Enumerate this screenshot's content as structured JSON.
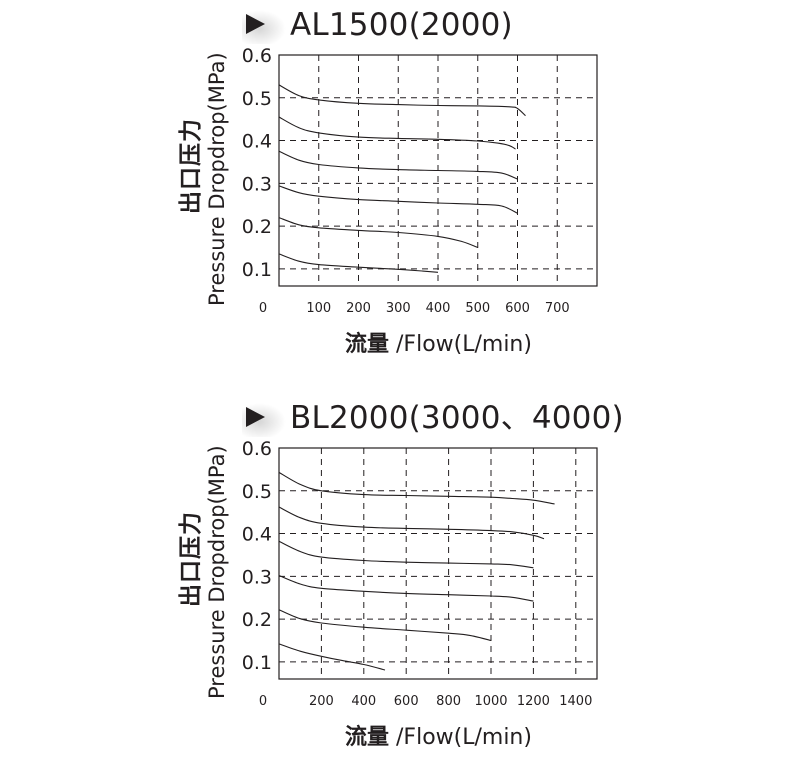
{
  "chart_data": [
    {
      "type": "line",
      "title": "AL1500(2000)",
      "ylabel_cn": "出口压力",
      "ylabel_en": "Pressure Dropdrop(MPa)",
      "xlabel_cn": "流量",
      "xlabel_en": " /Flow(L/min)",
      "xlim": [
        0,
        800
      ],
      "ylim": [
        0.06,
        0.6
      ],
      "grid": true,
      "grid_style": "dashed",
      "yticks": [
        0.1,
        0.2,
        0.3,
        0.4,
        0.5,
        0.6
      ],
      "ytick_labels": [
        "0.1",
        "0.2",
        "0.3",
        "0.4",
        "0.5",
        "0.6"
      ],
      "xticks": [
        0,
        100,
        200,
        300,
        400,
        500,
        600,
        700
      ],
      "xtick_labels": [
        "0",
        "100",
        "200",
        "300",
        "400",
        "500",
        "600",
        "700"
      ],
      "series": [
        {
          "points": [
            [
              0,
              0.53
            ],
            [
              50,
              0.505
            ],
            [
              100,
              0.495
            ],
            [
              200,
              0.487
            ],
            [
              300,
              0.484
            ],
            [
              400,
              0.482
            ],
            [
              500,
              0.481
            ],
            [
              580,
              0.479
            ],
            [
              600,
              0.475
            ],
            [
              620,
              0.458
            ]
          ]
        },
        {
          "points": [
            [
              0,
              0.455
            ],
            [
              50,
              0.43
            ],
            [
              100,
              0.418
            ],
            [
              200,
              0.408
            ],
            [
              300,
              0.405
            ],
            [
              400,
              0.403
            ],
            [
              500,
              0.399
            ],
            [
              550,
              0.394
            ],
            [
              580,
              0.388
            ],
            [
              595,
              0.38
            ]
          ]
        },
        {
          "points": [
            [
              0,
              0.375
            ],
            [
              50,
              0.354
            ],
            [
              100,
              0.344
            ],
            [
              200,
              0.336
            ],
            [
              300,
              0.332
            ],
            [
              400,
              0.33
            ],
            [
              500,
              0.328
            ],
            [
              560,
              0.324
            ],
            [
              600,
              0.31
            ]
          ]
        },
        {
          "points": [
            [
              0,
              0.294
            ],
            [
              50,
              0.278
            ],
            [
              100,
              0.27
            ],
            [
              200,
              0.262
            ],
            [
              300,
              0.258
            ],
            [
              400,
              0.254
            ],
            [
              500,
              0.251
            ],
            [
              560,
              0.247
            ],
            [
              600,
              0.23
            ]
          ]
        },
        {
          "points": [
            [
              0,
              0.22
            ],
            [
              50,
              0.203
            ],
            [
              100,
              0.196
            ],
            [
              200,
              0.19
            ],
            [
              300,
              0.185
            ],
            [
              400,
              0.176
            ],
            [
              460,
              0.164
            ],
            [
              500,
              0.15
            ]
          ]
        },
        {
          "points": [
            [
              0,
              0.135
            ],
            [
              50,
              0.118
            ],
            [
              100,
              0.11
            ],
            [
              200,
              0.104
            ],
            [
              300,
              0.099
            ],
            [
              360,
              0.095
            ],
            [
              400,
              0.092
            ]
          ]
        }
      ]
    },
    {
      "type": "line",
      "title": "BL2000(3000、4000)",
      "ylabel_cn": "出口压力",
      "ylabel_en": "Pressure Dropdrop(MPa)",
      "xlabel_cn": "流量",
      "xlabel_en": " /Flow(L/min)",
      "xlim": [
        0,
        1500
      ],
      "ylim": [
        0.06,
        0.6
      ],
      "grid": true,
      "grid_style": "dashed",
      "yticks": [
        0.1,
        0.2,
        0.3,
        0.4,
        0.5,
        0.6
      ],
      "ytick_labels": [
        "0.1",
        "0.2",
        "0.3",
        "0.4",
        "0.5",
        "0.6"
      ],
      "xticks": [
        0,
        200,
        400,
        600,
        800,
        1000,
        1200,
        1400
      ],
      "xtick_labels": [
        "0",
        "200",
        "400",
        "600",
        "800",
        "1000",
        "1200",
        "1400"
      ],
      "series": [
        {
          "points": [
            [
              0,
              0.543
            ],
            [
              100,
              0.515
            ],
            [
              200,
              0.5
            ],
            [
              400,
              0.491
            ],
            [
              600,
              0.489
            ],
            [
              800,
              0.487
            ],
            [
              1000,
              0.485
            ],
            [
              1100,
              0.482
            ],
            [
              1200,
              0.478
            ],
            [
              1300,
              0.469
            ]
          ]
        },
        {
          "points": [
            [
              0,
              0.462
            ],
            [
              100,
              0.437
            ],
            [
              200,
              0.424
            ],
            [
              400,
              0.415
            ],
            [
              600,
              0.412
            ],
            [
              800,
              0.41
            ],
            [
              1000,
              0.407
            ],
            [
              1100,
              0.404
            ],
            [
              1200,
              0.396
            ],
            [
              1250,
              0.388
            ]
          ]
        },
        {
          "points": [
            [
              0,
              0.382
            ],
            [
              100,
              0.358
            ],
            [
              200,
              0.345
            ],
            [
              400,
              0.337
            ],
            [
              600,
              0.333
            ],
            [
              800,
              0.331
            ],
            [
              1000,
              0.329
            ],
            [
              1100,
              0.327
            ],
            [
              1200,
              0.32
            ]
          ]
        },
        {
          "points": [
            [
              0,
              0.302
            ],
            [
              100,
              0.282
            ],
            [
              200,
              0.272
            ],
            [
              400,
              0.265
            ],
            [
              600,
              0.26
            ],
            [
              800,
              0.257
            ],
            [
              1000,
              0.254
            ],
            [
              1100,
              0.251
            ],
            [
              1200,
              0.242
            ]
          ]
        },
        {
          "points": [
            [
              0,
              0.222
            ],
            [
              100,
              0.201
            ],
            [
              200,
              0.191
            ],
            [
              400,
              0.181
            ],
            [
              600,
              0.174
            ],
            [
              800,
              0.167
            ],
            [
              900,
              0.162
            ],
            [
              1000,
              0.15
            ]
          ]
        },
        {
          "points": [
            [
              0,
              0.142
            ],
            [
              100,
              0.125
            ],
            [
              200,
              0.113
            ],
            [
              300,
              0.103
            ],
            [
              400,
              0.094
            ],
            [
              500,
              0.081
            ]
          ]
        }
      ]
    }
  ]
}
